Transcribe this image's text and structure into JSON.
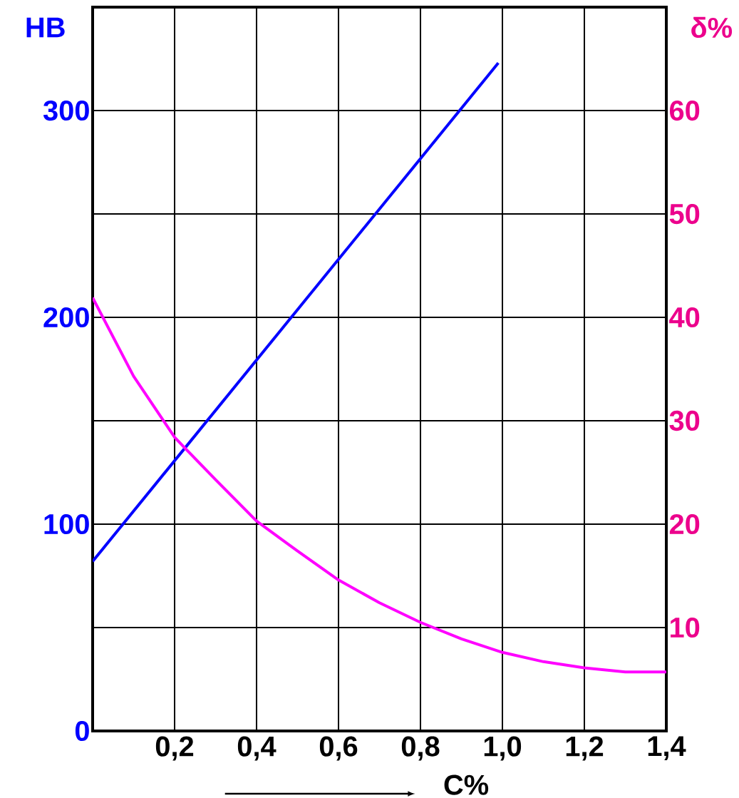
{
  "chart_data": {
    "type": "line",
    "xlabel": "C%",
    "ylabel": "HB",
    "y2label": "δ%",
    "grid": true,
    "xlim": [
      0,
      1.4
    ],
    "xticks": [
      {
        "value": 0.2,
        "label": "0,2"
      },
      {
        "value": 0.4,
        "label": "0,4"
      },
      {
        "value": 0.6,
        "label": "0,6"
      },
      {
        "value": 0.8,
        "label": "0,8"
      },
      {
        "value": 1.0,
        "label": "1,0"
      },
      {
        "value": 1.2,
        "label": "1,2"
      },
      {
        "value": 1.4,
        "label": "1,4"
      }
    ],
    "ylim": [
      0,
      350
    ],
    "yticks": [
      0,
      {
        "value": 50,
        "label": null
      },
      100,
      {
        "value": 150,
        "label": null
      },
      200,
      {
        "value": 250,
        "label": null
      },
      300
    ],
    "y2lim": [
      0,
      70
    ],
    "y2ticks": [
      10,
      20,
      30,
      40,
      50,
      60
    ],
    "series": [
      {
        "color": "#0000ff",
        "x": [
          0,
          0.99
        ],
        "values": [
          82,
          323
        ]
      },
      {
        "color": "#ff00ff",
        "axis": "y2",
        "x": [
          0,
          0.1,
          0.2,
          0.3,
          0.4,
          0.5,
          0.6,
          0.7,
          0.8,
          0.9,
          1.0,
          1.1,
          1.2,
          1.3,
          1.4
        ],
        "values": [
          41.9,
          34.3,
          28.4,
          24.3,
          20.3,
          17.4,
          14.6,
          12.4,
          10.5,
          8.9,
          7.6,
          6.7,
          6.1,
          5.7,
          5.7
        ]
      }
    ]
  }
}
